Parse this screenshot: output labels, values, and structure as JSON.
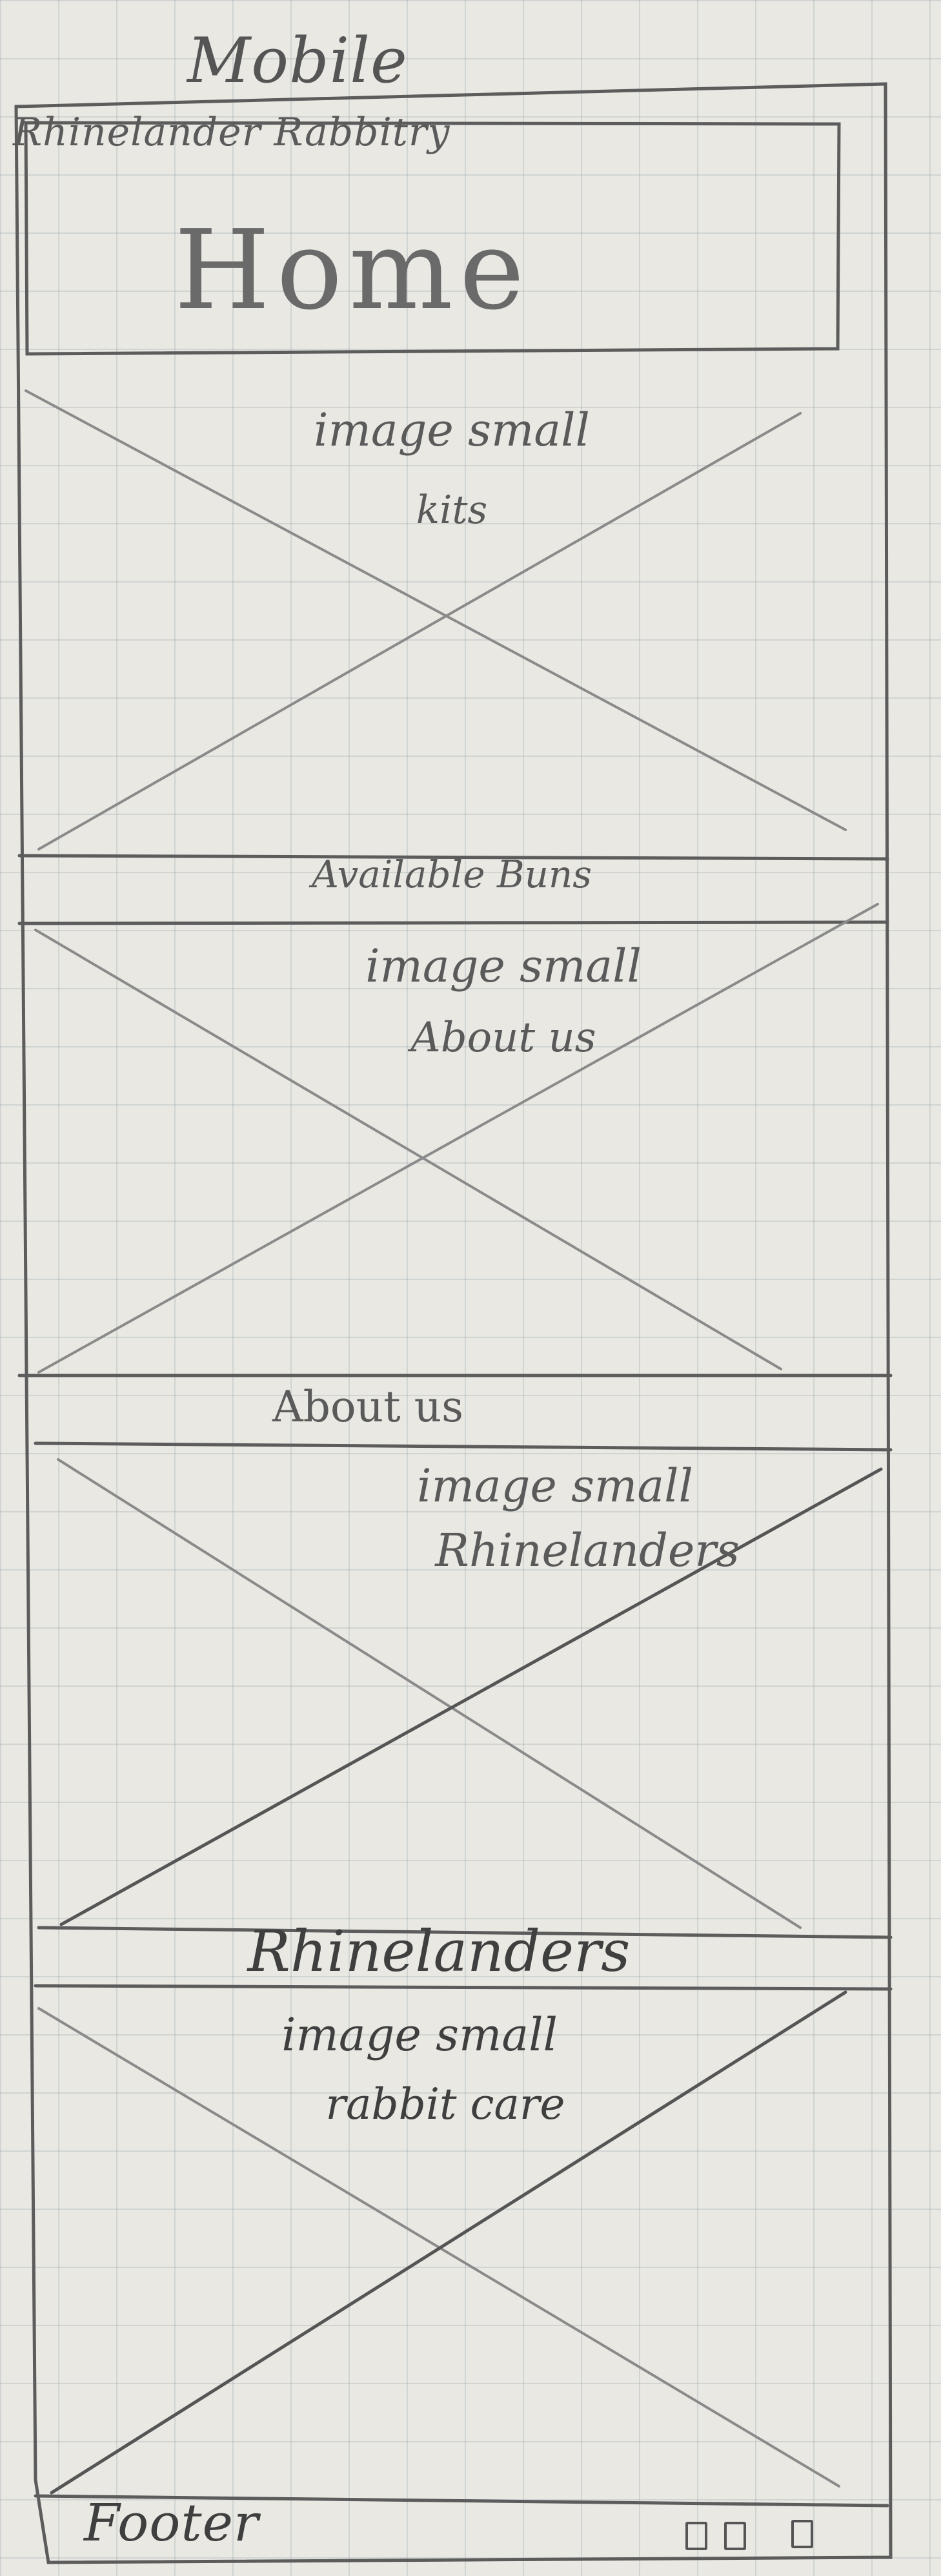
{
  "wireframe": {
    "title": "Mobile",
    "header": {
      "site_name": "Rhinelander Rabbitry",
      "page_name": "Home"
    },
    "sections": [
      {
        "image_label_line1": "image small",
        "image_label_line2": "kits",
        "caption": "Available Buns"
      },
      {
        "image_label_line1": "image small",
        "image_label_line2": "About us",
        "caption": "About us"
      },
      {
        "image_label_line1": "image small",
        "image_label_line2": "Rhinelanders",
        "caption": "Rhinelanders"
      },
      {
        "image_label_line1": "image small",
        "image_label_line2": "rabbit care"
      }
    ],
    "footer": {
      "label": "Footer",
      "icons": [
        "social-icon-1",
        "social-icon-2",
        "social-icon-3"
      ]
    },
    "colors": {
      "paper": "#e9e8e3",
      "grid": "#8ca0a8",
      "pencil": "#555555"
    }
  }
}
